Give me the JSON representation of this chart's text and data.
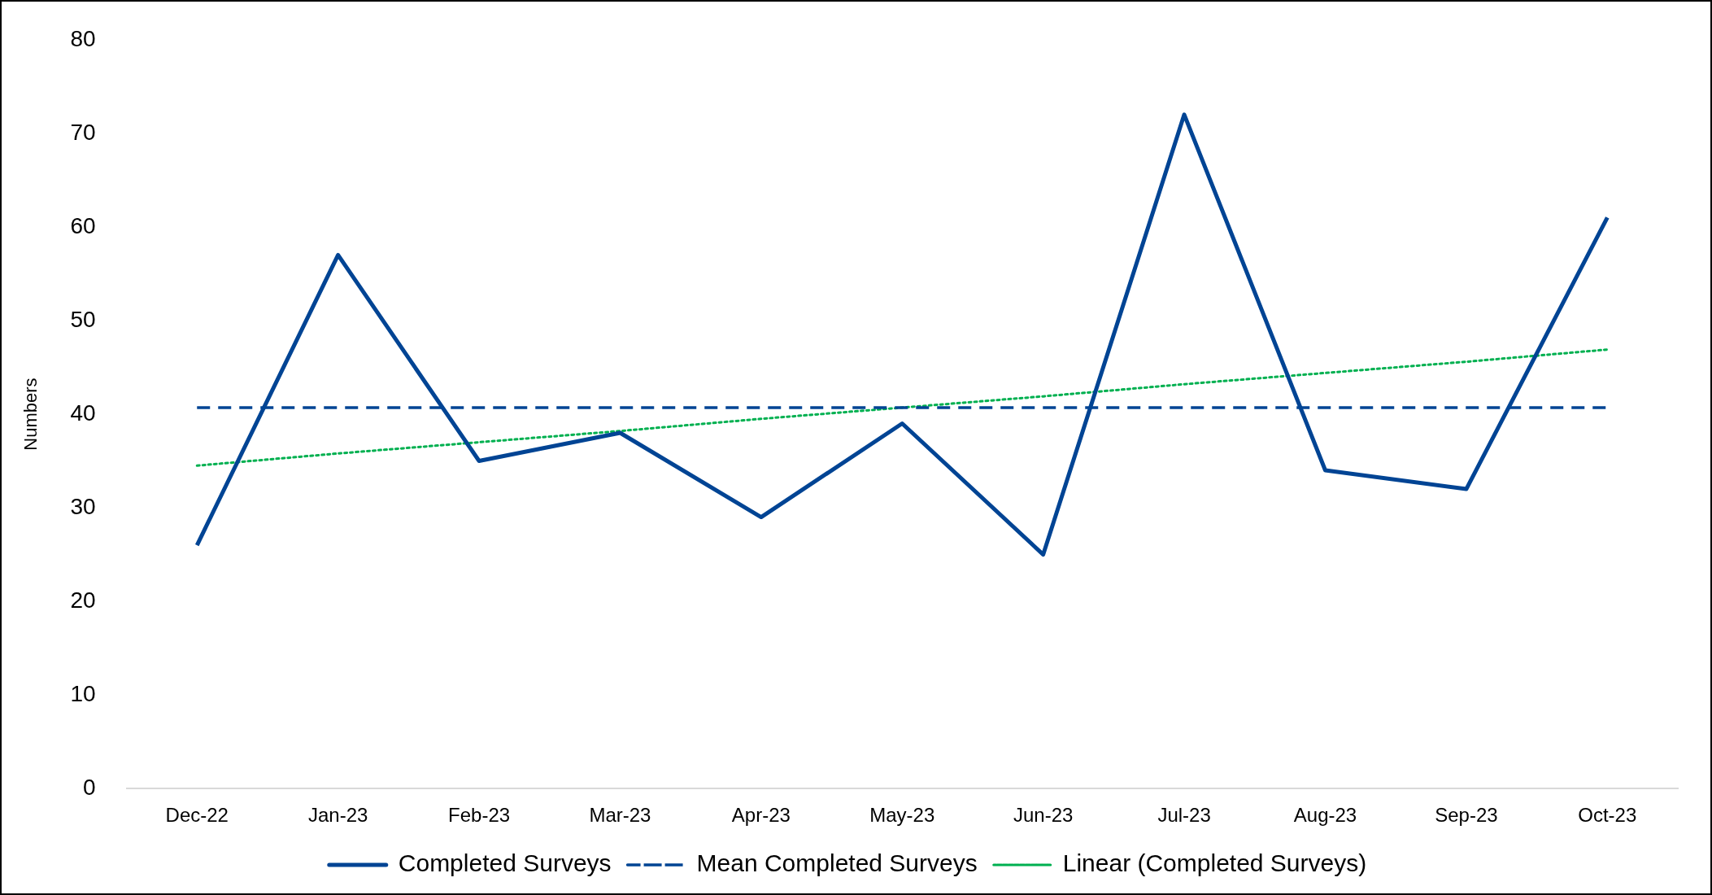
{
  "chart_data": {
    "type": "line",
    "ylabel": "Numbers",
    "categories": [
      "Dec-22",
      "Jan-23",
      "Feb-23",
      "Mar-23",
      "Apr-23",
      "May-23",
      "Jun-23",
      "Jul-23",
      "Aug-23",
      "Sep-23",
      "Oct-23"
    ],
    "series": [
      {
        "name": "Completed Surveys",
        "color": "#004494",
        "line_style": "solid",
        "values": [
          26,
          57,
          35,
          38,
          29,
          39,
          25,
          72,
          34,
          32,
          61
        ]
      },
      {
        "name": "Mean Completed Surveys",
        "color": "#004494",
        "line_style": "dashed",
        "values": [
          40.7,
          40.7,
          40.7,
          40.7,
          40.7,
          40.7,
          40.7,
          40.7,
          40.7,
          40.7,
          40.7
        ]
      },
      {
        "name": "Linear (Completed Surveys)",
        "color": "#00b050",
        "line_style": "dotted",
        "values": [
          34.5,
          35.8,
          37.0,
          38.2,
          39.5,
          40.7,
          41.9,
          43.2,
          44.4,
          45.6,
          46.9
        ]
      }
    ],
    "ylim": [
      0,
      80
    ],
    "yticks": [
      0,
      10,
      20,
      30,
      40,
      50,
      60,
      70,
      80
    ],
    "grid": false,
    "legend": "bottom",
    "marker": "none"
  }
}
